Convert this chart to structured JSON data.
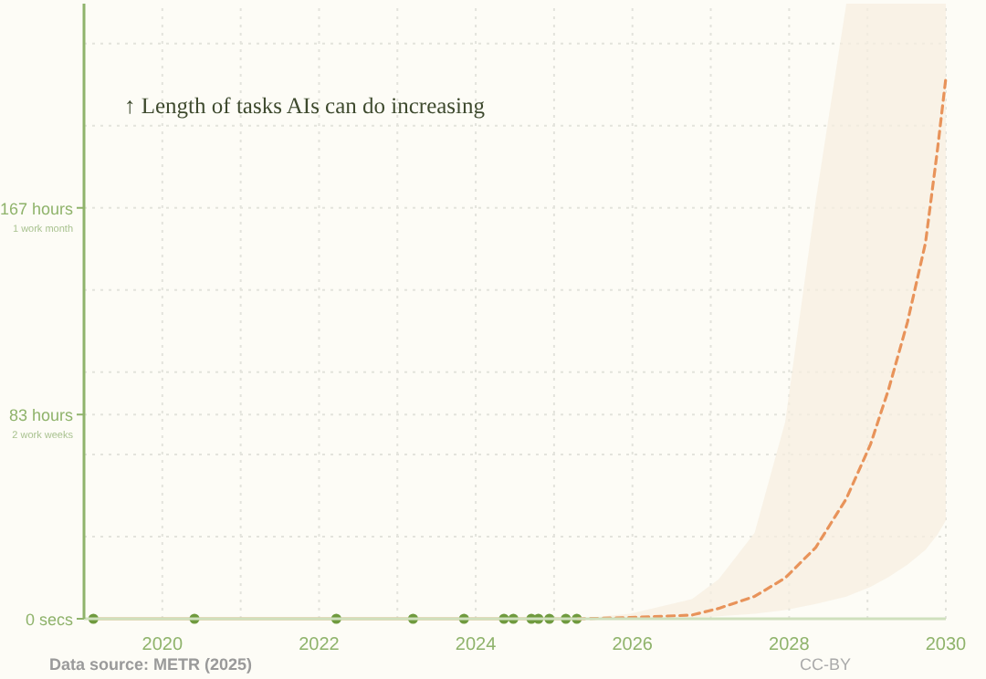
{
  "chart_data": {
    "type": "line",
    "title": "↑ Length of tasks AIs can do increasing",
    "annotations": [
      "Data source: METR (2025)",
      "CC-BY",
      "2 work weeks",
      "1 work month"
    ],
    "xlim": [
      2019,
      2030
    ],
    "xticks": [
      {
        "value": 2019,
        "label": null
      },
      2020,
      {
        "value": 2021,
        "label": null
      },
      2022,
      {
        "value": 2023,
        "label": null
      },
      2024,
      {
        "value": 2025,
        "label": null
      },
      2026,
      {
        "value": 2027,
        "label": null
      },
      2028,
      {
        "value": 2029,
        "label": null
      },
      2030
    ],
    "ylim": [
      0,
      250
    ],
    "yticks": [
      {
        "value": 0,
        "label": "0 secs"
      },
      {
        "value": 33.4,
        "label": null
      },
      {
        "value": 66.8,
        "label": null
      },
      {
        "value": 83,
        "label": "83 hours"
      },
      {
        "value": 100.2,
        "label": null
      },
      {
        "value": 133.6,
        "label": null
      },
      {
        "value": 167,
        "label": "167 hours"
      },
      {
        "value": 200.4,
        "label": null
      },
      {
        "value": 233.8,
        "label": null
      }
    ],
    "grid": true,
    "series": [
      {
        "color": "#e9b27a",
        "marker": "none",
        "line_style": "solid",
        "x": [
          2019.12,
          2020.41,
          2022.22,
          2023.2,
          2023.85,
          2024.36,
          2024.48,
          2024.71,
          2024.8,
          2024.94,
          2025.15,
          2025.29
        ],
        "values": [
          0,
          0,
          0,
          0,
          0,
          0,
          0,
          0,
          0,
          0,
          0,
          0
        ]
      },
      {
        "type": "scatter",
        "color": "#6f9a3e",
        "marker": "circle",
        "x": [
          2019.12,
          2020.41,
          2022.22,
          2023.2,
          2023.85,
          2024.36,
          2024.48,
          2024.71,
          2024.8,
          2024.94,
          2025.15,
          2025.29
        ],
        "values": [
          0,
          0,
          0,
          0,
          0,
          0,
          0,
          0,
          0,
          0,
          0,
          0
        ]
      },
      {
        "color": "#e8935a",
        "marker": "none",
        "line_style": "dashed",
        "x": [
          2025.3,
          2025.97,
          2026.76,
          2027.1,
          2027.56,
          2027.95,
          2028.34,
          2028.73,
          2029.04,
          2029.27,
          2029.51,
          2029.74,
          2029.89,
          2030
        ],
        "values": [
          0,
          0.5,
          1.5,
          4.2,
          9.1,
          16.6,
          29,
          48.8,
          71,
          93.3,
          120.5,
          152.7,
          189.8,
          219.7
        ],
        "lower": [
          0,
          0,
          0.3,
          1,
          2,
          3.5,
          6,
          9,
          13,
          17,
          22,
          28,
          34,
          40
        ],
        "upper": [
          0,
          2,
          8,
          16,
          35,
          80,
          170,
          250,
          250,
          250,
          250,
          250,
          250,
          250
        ]
      }
    ]
  }
}
